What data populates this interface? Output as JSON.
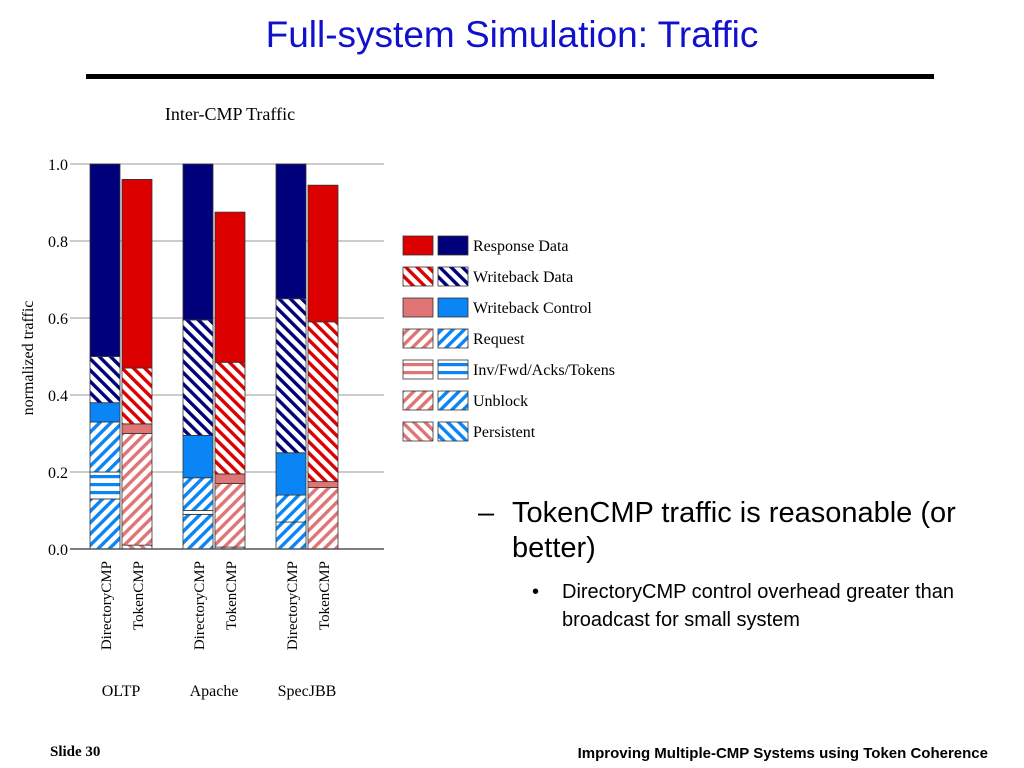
{
  "slide": {
    "title": "Full-system Simulation: Traffic",
    "bullet": "TokenCMP traffic is reasonable (or better)",
    "bullet_dash": "–",
    "subbullet": "DirectoryCMP control overhead greater than broadcast for small system",
    "subbullet_dot": "•",
    "footer_left": "Slide 30",
    "footer_right": "Improving Multiple-CMP Systems using Token Coherence"
  },
  "chart_data": {
    "type": "bar",
    "stacked": true,
    "title": "Inter-CMP Traffic",
    "ylabel": "normalized traffic",
    "ylim": [
      0,
      1.0
    ],
    "yticks": [
      "0.0",
      "0.2",
      "0.4",
      "0.6",
      "0.8",
      "1.0"
    ],
    "grid": true,
    "legend_position": "right",
    "groups": [
      "OLTP",
      "Apache",
      "SpecJBB"
    ],
    "categories": [
      "DirectoryCMP",
      "TokenCMP",
      "DirectoryCMP",
      "TokenCMP",
      "DirectoryCMP",
      "TokenCMP"
    ],
    "category_group": [
      0,
      0,
      1,
      1,
      2,
      2
    ],
    "category_protocol": [
      "directory",
      "token",
      "directory",
      "token",
      "directory",
      "token"
    ],
    "protocol_colors": {
      "directory": "#0a85f5",
      "token": "#e07575"
    },
    "protocol_dark_colors": {
      "directory": "#00007a",
      "token": "#dd0000"
    },
    "series": [
      {
        "name": "Persistent",
        "pattern": "fwd-diag",
        "values": [
          0,
          0.01,
          0,
          0.005,
          0,
          0
        ]
      },
      {
        "name": "Unblock",
        "pattern": "back-diag",
        "values": [
          0.13,
          0,
          0.09,
          0,
          0.07,
          0
        ]
      },
      {
        "name": "Inv/Fwd/Acks/Tokens",
        "pattern": "horizontal",
        "values": [
          0.07,
          0,
          0.01,
          0,
          0,
          0
        ]
      },
      {
        "name": "Request",
        "pattern": "back-diag",
        "values": [
          0.13,
          0.29,
          0.085,
          0.165,
          0.07,
          0.16
        ]
      },
      {
        "name": "Writeback Control",
        "pattern": "solid",
        "values": [
          0.05,
          0.025,
          0.11,
          0.025,
          0.11,
          0.015
        ]
      },
      {
        "name": "Writeback Data",
        "pattern": "fwd-diag-dark",
        "values": [
          0.12,
          0.145,
          0.3,
          0.29,
          0.4,
          0.415
        ]
      },
      {
        "name": "Response Data",
        "pattern": "solid-dark",
        "values": [
          0.5,
          0.49,
          0.405,
          0.39,
          0.35,
          0.355
        ]
      }
    ],
    "legend_order": [
      "Response Data",
      "Writeback Data",
      "Writeback Control",
      "Request",
      "Inv/Fwd/Acks/Tokens",
      "Unblock",
      "Persistent"
    ]
  }
}
